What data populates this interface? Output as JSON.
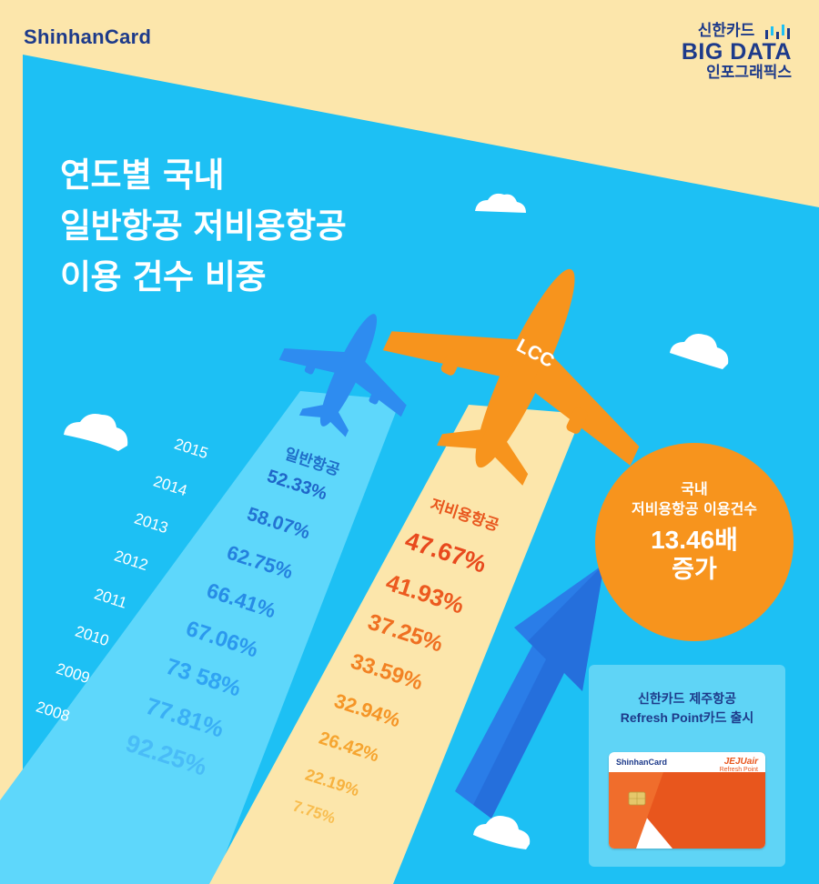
{
  "header": {
    "brand": "ShinhanCard",
    "badge_line1": "신한카드",
    "badge_line2": "BIG DATA",
    "badge_line3": "인포그래픽스"
  },
  "title": {
    "line1": "연도별 국내",
    "line2": "일반항공 저비용항공",
    "line3": "이용 건수 비중"
  },
  "plane_label": "LCC",
  "columns": {
    "full_service_label": "일반항공",
    "low_cost_label": "저비용항공"
  },
  "years": [
    "2015",
    "2014",
    "2013",
    "2012",
    "2011",
    "2010",
    "2009",
    "2008"
  ],
  "full_service_values": [
    "52.33%",
    "58.07%",
    "62.75%",
    "66.41%",
    "67.06%",
    "73 58%",
    "77.81%",
    "92.25%"
  ],
  "low_cost_values": [
    "47.67%",
    "41.93%",
    "37.25%",
    "33.59%",
    "32.94%",
    "26.42%",
    "22.19%",
    "7.75%"
  ],
  "callout": {
    "line1": "국내",
    "line2": "저비용항공 이용건수",
    "line3": "13.46배",
    "line4": "증가"
  },
  "card_panel": {
    "line1": "신한카드 제주항공",
    "line2": "Refresh Point카드 출시",
    "card_brand": "ShinhanCard",
    "card_partner": "JEJUair",
    "card_partner_sub": "Refresh Point"
  },
  "colors": {
    "sky": "#1dc0f4",
    "sand": "#fce6ab",
    "navy": "#1d3a8a",
    "blue_plane": "#2e8cf0",
    "orange_plane": "#f7941d",
    "red_text": "#e8561d"
  }
}
